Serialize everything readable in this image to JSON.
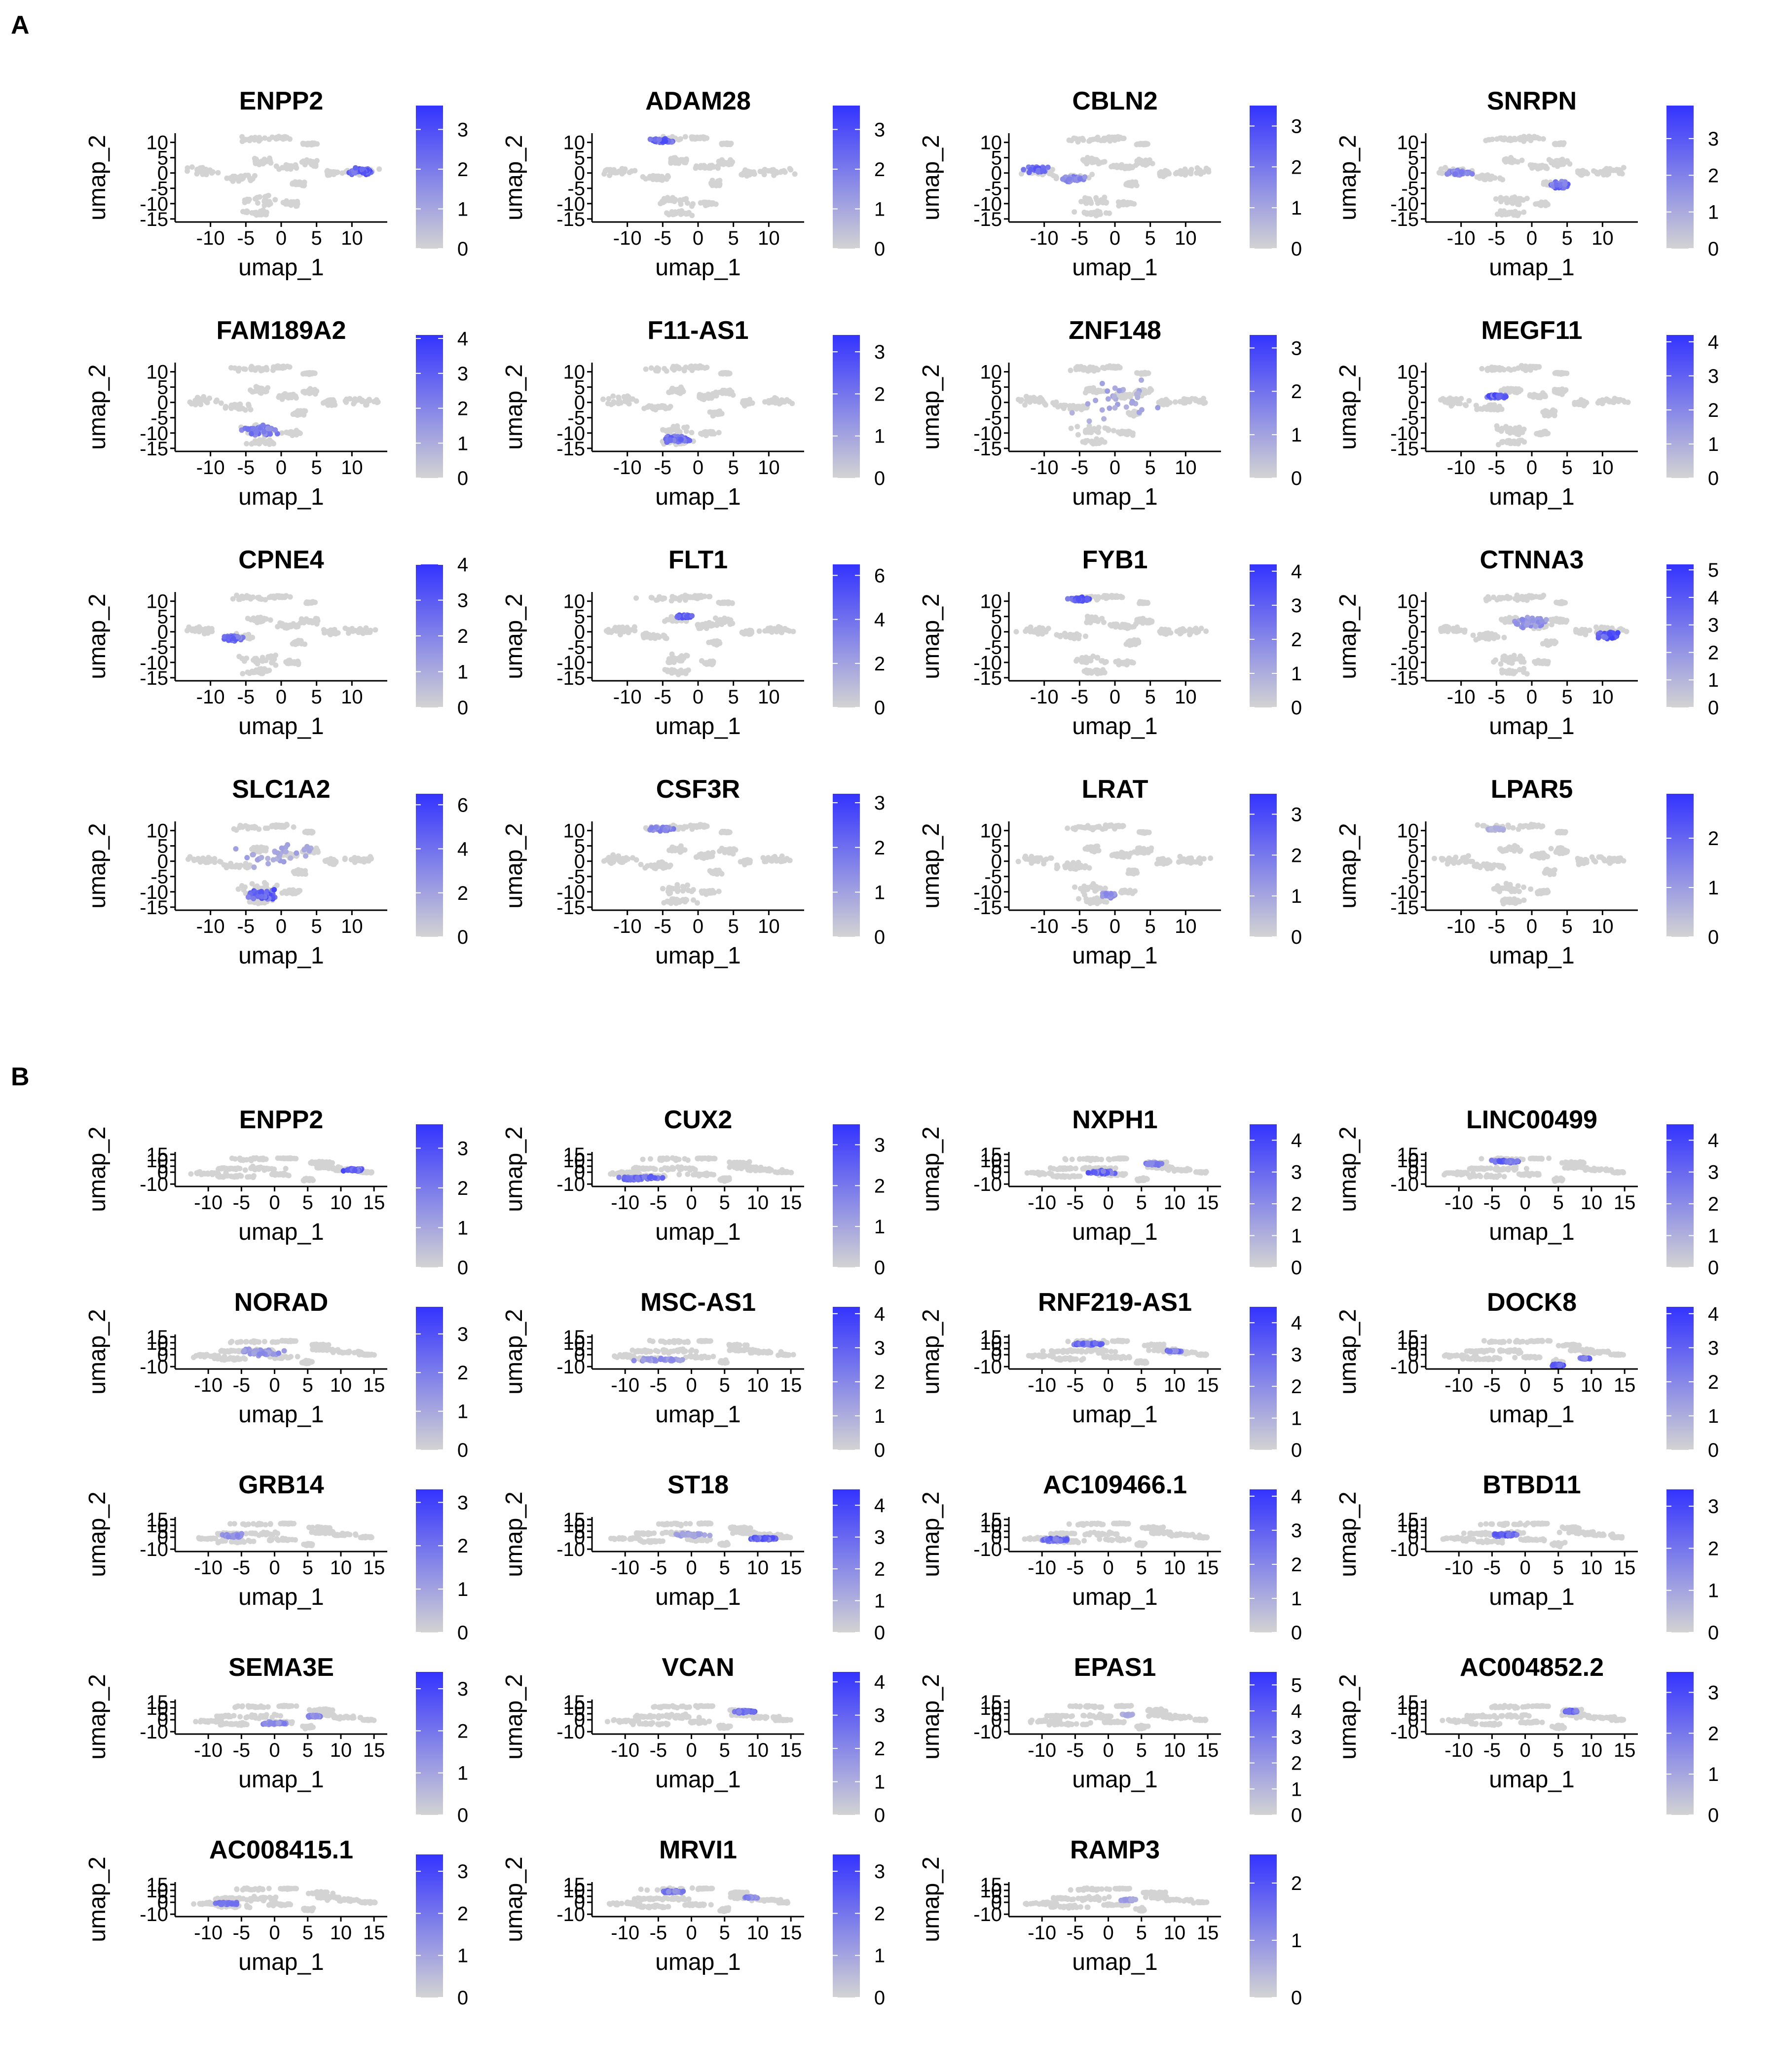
{
  "panels": [
    {
      "letter": "A",
      "xlabel": "umap_1",
      "ylabel": "umap_2",
      "x_ticks": [
        -10,
        -5,
        0,
        5,
        10
      ],
      "y_ticks": [
        10,
        5,
        0,
        -5,
        -10,
        -15
      ],
      "xlim": [
        -15,
        15
      ],
      "ylim": [
        -16,
        13
      ],
      "plots": [
        {
          "gene": "ENPP2",
          "legend_max": 3.6,
          "legend_ticks": [
            0,
            1,
            2,
            3
          ],
          "hotspots": [
            [
              11,
              0.5,
              3.5,
              2.2,
              0.9
            ]
          ]
        },
        {
          "gene": "ADAM28",
          "legend_max": 3.6,
          "legend_ticks": [
            0,
            1,
            2,
            3
          ],
          "hotspots": [
            [
              -5,
              10.5,
              3,
              1.2,
              0.9
            ]
          ]
        },
        {
          "gene": "CBLN2",
          "legend_max": 3.5,
          "legend_ticks": [
            0,
            1,
            2,
            3
          ],
          "hotspots": [
            [
              -11,
              1,
              3,
              2,
              0.8
            ],
            [
              -6,
              -2,
              3,
              1.5,
              0.6
            ]
          ]
        },
        {
          "gene": "SNRPN",
          "legend_max": 3.9,
          "legend_ticks": [
            0,
            1,
            2,
            3
          ],
          "hotspots": [
            [
              -10,
              0,
              3,
              1.5,
              0.6
            ],
            [
              4,
              -4,
              2.5,
              2,
              0.8
            ]
          ]
        },
        {
          "gene": "FAM189A2",
          "legend_max": 4.1,
          "legend_ticks": [
            0,
            1,
            2,
            3,
            4
          ],
          "hotspots": [
            [
              -3,
              -9,
              4,
              3,
              0.7
            ]
          ]
        },
        {
          "gene": "F11-AS1",
          "legend_max": 3.4,
          "legend_ticks": [
            0,
            1,
            2,
            3
          ],
          "hotspots": [
            [
              -3,
              -12,
              3.5,
              2,
              0.8
            ]
          ]
        },
        {
          "gene": "ZNF148",
          "legend_max": 3.3,
          "legend_ticks": [
            0,
            1,
            2,
            3
          ],
          "hotspots": [
            [
              0,
              0,
              14,
              12,
              0.35
            ]
          ]
        },
        {
          "gene": "MEGF11",
          "legend_max": 4.2,
          "legend_ticks": [
            0,
            1,
            2,
            3,
            4
          ],
          "hotspots": [
            [
              -5,
              2,
              2.5,
              1.2,
              0.9
            ]
          ]
        },
        {
          "gene": "CPNE4",
          "legend_max": 4.0,
          "legend_ticks": [
            0,
            1,
            2,
            3,
            4
          ],
          "hotspots": [
            [
              -7,
              -2,
              3,
              1.5,
              0.8
            ]
          ]
        },
        {
          "gene": "FLT1",
          "legend_max": 6.5,
          "legend_ticks": [
            0,
            2,
            4,
            6
          ],
          "hotspots": [
            [
              -2,
              5,
              2.5,
              1,
              0.9
            ]
          ]
        },
        {
          "gene": "FYB1",
          "legend_max": 4.2,
          "legend_ticks": [
            0,
            1,
            2,
            3,
            4
          ],
          "hotspots": [
            [
              -5,
              10.5,
              3.5,
              1.3,
              0.9
            ]
          ]
        },
        {
          "gene": "CTNNA3",
          "legend_max": 5.2,
          "legend_ticks": [
            0,
            1,
            2,
            3,
            4,
            5
          ],
          "hotspots": [
            [
              11,
              -1,
              3.5,
              2.2,
              0.95
            ],
            [
              0,
              3,
              5,
              3,
              0.5
            ]
          ]
        },
        {
          "gene": "SLC1A2",
          "legend_max": 6.5,
          "legend_ticks": [
            0,
            2,
            4,
            6
          ],
          "hotspots": [
            [
              -3,
              -11,
              4,
              3,
              0.9
            ],
            [
              0,
              2,
              12,
              8,
              0.35
            ]
          ]
        },
        {
          "gene": "CSF3R",
          "legend_max": 3.2,
          "legend_ticks": [
            0,
            1,
            2,
            3
          ],
          "hotspots": [
            [
              -5,
              10.5,
              3,
              1.2,
              0.6
            ]
          ]
        },
        {
          "gene": "LRAT",
          "legend_max": 3.5,
          "legend_ticks": [
            0,
            1,
            2,
            3
          ],
          "hotspots": [
            [
              -1,
              -11,
              2,
              1.5,
              0.5
            ]
          ]
        },
        {
          "gene": "LPAR5",
          "legend_max": 2.9,
          "legend_ticks": [
            0,
            1,
            2
          ],
          "hotspots": [
            [
              -5,
              10.5,
              2.5,
              1,
              0.3
            ]
          ]
        }
      ]
    },
    {
      "letter": "B",
      "xlabel": "umap_1",
      "ylabel": "umap_2",
      "x_ticks": [
        -10,
        -5,
        0,
        5,
        10,
        15
      ],
      "y_ticks": [
        15,
        10,
        5,
        0,
        -10
      ],
      "y_tick_labels": [
        "15",
        "10",
        "5",
        "0",
        "-10"
      ],
      "xlim": [
        -15,
        17
      ],
      "ylim": [
        -12,
        17
      ],
      "plots": [
        {
          "gene": "ENPP2",
          "legend_max": 3.6,
          "legend_ticks": [
            0,
            1,
            2,
            3
          ],
          "hotspots": [
            [
              12,
              2,
              3,
              2,
              0.9
            ]
          ]
        },
        {
          "gene": "CUX2",
          "legend_max": 3.5,
          "legend_ticks": [
            0,
            1,
            2,
            3
          ],
          "hotspots": [
            [
              -8,
              -5,
              6,
              3,
              0.8
            ]
          ]
        },
        {
          "gene": "NXPH1",
          "legend_max": 4.5,
          "legend_ticks": [
            0,
            1,
            2,
            3,
            4
          ],
          "hotspots": [
            [
              -1,
              0,
              4,
              3,
              0.85
            ],
            [
              7,
              7,
              2.5,
              2,
              0.7
            ]
          ]
        },
        {
          "gene": "LINC00499",
          "legend_max": 4.5,
          "legend_ticks": [
            0,
            1,
            2,
            3,
            4
          ],
          "hotspots": [
            [
              -3,
              9,
              4,
              1.8,
              0.8
            ]
          ]
        },
        {
          "gene": "NORAD",
          "legend_max": 3.7,
          "legend_ticks": [
            0,
            1,
            2,
            3
          ],
          "hotspots": [
            [
              -2,
              2,
              6,
              6,
              0.5
            ]
          ]
        },
        {
          "gene": "MSC-AS1",
          "legend_max": 4.2,
          "legend_ticks": [
            0,
            1,
            2,
            3,
            4
          ],
          "hotspots": [
            [
              -5,
              -4,
              7,
              3,
              0.5
            ]
          ]
        },
        {
          "gene": "RNF219-AS1",
          "legend_max": 4.5,
          "legend_ticks": [
            0,
            1,
            2,
            3,
            4
          ],
          "hotspots": [
            [
              -3,
              9,
              4,
              1.8,
              0.8
            ],
            [
              10,
              3,
              2,
              1,
              0.7
            ]
          ]
        },
        {
          "gene": "DOCK8",
          "legend_max": 4.2,
          "legend_ticks": [
            0,
            1,
            2,
            3,
            4
          ],
          "hotspots": [
            [
              5,
              -9,
              1.5,
              2,
              0.9
            ],
            [
              9,
              -3,
              1.5,
              1,
              0.8
            ]
          ]
        },
        {
          "gene": "GRB14",
          "legend_max": 3.3,
          "legend_ticks": [
            0,
            1,
            2,
            3
          ],
          "hotspots": [
            [
              -6,
              1,
              4,
              3,
              0.5
            ]
          ]
        },
        {
          "gene": "ST18",
          "legend_max": 4.5,
          "legend_ticks": [
            0,
            1,
            2,
            3,
            4
          ],
          "hotspots": [
            [
              11,
              -1,
              4,
              2,
              0.9
            ],
            [
              0,
              2,
              5,
              3,
              0.4
            ]
          ]
        },
        {
          "gene": "AC109466.1",
          "legend_max": 4.2,
          "legend_ticks": [
            0,
            1,
            2,
            3,
            4
          ],
          "hotspots": [
            [
              -8,
              -2,
              5,
              3,
              0.8
            ]
          ]
        },
        {
          "gene": "BTBD11",
          "legend_max": 3.4,
          "legend_ticks": [
            0,
            1,
            2,
            3
          ],
          "hotspots": [
            [
              -3,
              2,
              4,
              2.5,
              0.9
            ]
          ]
        },
        {
          "gene": "SEMA3E",
          "legend_max": 3.4,
          "legend_ticks": [
            0,
            1,
            2,
            3
          ],
          "hotspots": [
            [
              0,
              -3,
              4,
              2,
              0.6
            ],
            [
              6,
              3,
              2,
              1.5,
              0.6
            ]
          ]
        },
        {
          "gene": "VCAN",
          "legend_max": 4.3,
          "legend_ticks": [
            0,
            1,
            2,
            3,
            4
          ],
          "hotspots": [
            [
              8,
              7,
              3,
              2,
              0.85
            ]
          ]
        },
        {
          "gene": "EPAS1",
          "legend_max": 5.5,
          "legend_ticks": [
            0,
            1,
            2,
            3,
            4,
            5
          ],
          "hotspots": [
            [
              3,
              4,
              2,
              1.5,
              0.3
            ]
          ]
        },
        {
          "gene": "AC004852.2",
          "legend_max": 3.5,
          "legend_ticks": [
            0,
            1,
            2,
            3
          ],
          "hotspots": [
            [
              7,
              7,
              2,
              1.5,
              0.85
            ]
          ]
        },
        {
          "gene": "AC008415.1",
          "legend_max": 3.4,
          "legend_ticks": [
            0,
            1,
            2,
            3
          ],
          "hotspots": [
            [
              -7,
              -1,
              4,
              2,
              0.7
            ]
          ]
        },
        {
          "gene": "MRVI1",
          "legend_max": 3.4,
          "legend_ticks": [
            0,
            1,
            2,
            3
          ],
          "hotspots": [
            [
              -3,
              9,
              4,
              1.8,
              0.7
            ],
            [
              9,
              4,
              2,
              1,
              0.6
            ]
          ]
        },
        {
          "gene": "RAMP3",
          "legend_max": 2.5,
          "legend_ticks": [
            0,
            1,
            2
          ],
          "hotspots": [
            [
              3,
              2,
              2,
              1.5,
              0.4
            ]
          ]
        }
      ]
    }
  ],
  "colors": {
    "low": "#d3d3d3",
    "high": "#3333ff",
    "axis": "#000000"
  }
}
